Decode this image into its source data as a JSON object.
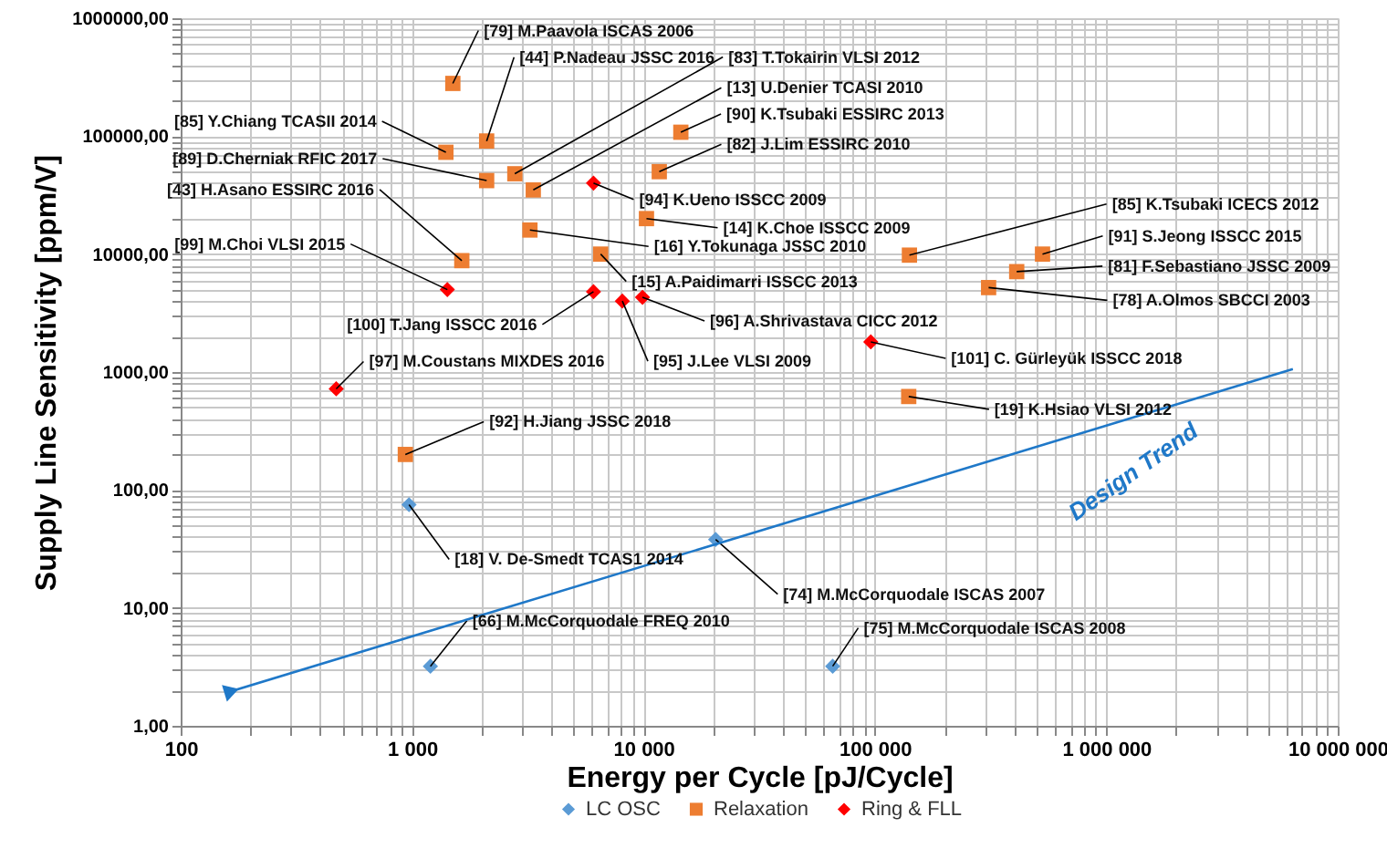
{
  "chart_data": {
    "type": "scatter",
    "xlabel": "Energy per Cycle [pJ/Cycle]",
    "ylabel": "Supply Line Sensitivity [ppm/V]",
    "log": "xy",
    "grid": true,
    "legend": "bottom",
    "xlim": [
      100,
      10000000
    ],
    "ylim": [
      1,
      1000000
    ],
    "xticks": [
      {
        "value": 100,
        "label": "100"
      },
      {
        "value": 1000,
        "label": "1 000"
      },
      {
        "value": 10000,
        "label": "10 000"
      },
      {
        "value": 100000,
        "label": "100 000"
      },
      {
        "value": 1000000,
        "label": "1 000 000"
      },
      {
        "value": 10000000,
        "label": "10 000 000"
      }
    ],
    "yticks": [
      {
        "value": 1,
        "label": "1,00"
      },
      {
        "value": 10,
        "label": "10,00"
      },
      {
        "value": 100,
        "label": "100,00"
      },
      {
        "value": 1000,
        "label": "1000,00"
      },
      {
        "value": 10000,
        "label": "10000,00"
      },
      {
        "value": 100000,
        "label": "100000,00"
      },
      {
        "value": 1000000,
        "label": "1000000,00"
      }
    ],
    "series": [
      {
        "name": "LC OSC",
        "color": "#5b9bd5",
        "marker": "diamond",
        "x": [
          970,
          20500,
          1200,
          65700
        ],
        "values": [
          75,
          38,
          3.2,
          3.2
        ]
      },
      {
        "name": "Relaxation",
        "color": "#ed7d31",
        "marker": "square",
        "x": [
          1500,
          2100,
          2780,
          3340,
          14500,
          11700,
          1400,
          2100,
          1640,
          10300,
          3230,
          6530,
          141000,
          530000,
          410000,
          310000,
          140000,
          935
        ],
        "values": [
          280000,
          91000,
          48000,
          35000,
          108000,
          50000,
          73000,
          42000,
          8800,
          20000,
          16000,
          10000,
          9800,
          10000,
          7100,
          5200,
          620,
          200
        ]
      },
      {
        "name": "Ring & FLL",
        "color": "#ff0000",
        "marker": "diamond",
        "x": [
          6080,
          1420,
          6080,
          8100,
          9900,
          470,
          96000
        ],
        "values": [
          40000,
          5000,
          4800,
          4000,
          4300,
          720,
          1800
        ]
      },
      {
        "name": "Design Trend",
        "type": "line",
        "color": "#1f78c8",
        "line_style": "solid",
        "x": [
          166,
          6400000
        ],
        "values": [
          1.97,
          1060
        ]
      }
    ],
    "annotations": [
      {
        "text": "[79] M.Paavola ISCAS 2006",
        "x": 1500,
        "y": 280000
      },
      {
        "text": "[44]  P.Nadeau JSSC 2016",
        "x": 2100,
        "y": 91000
      },
      {
        "text": "[83]  T.Tokairin VLSI 2012",
        "x": 2780,
        "y": 48000
      },
      {
        "text": "[13]  U.Denier TCASI 2010",
        "x": 3340,
        "y": 35000
      },
      {
        "text": "[90]  K.Tsubaki ESSIRC 2013",
        "x": 14500,
        "y": 108000
      },
      {
        "text": "[82]  J.Lim ESSIRC 2010",
        "x": 11700,
        "y": 50000
      },
      {
        "text": "[85]  Y.Chiang TCASII 2014",
        "x": 1400,
        "y": 73000
      },
      {
        "text": "[89]  D.Cherniak RFIC 2017",
        "x": 2100,
        "y": 42000
      },
      {
        "text": "[43]  H.Asano ESSIRC 2016",
        "x": 1640,
        "y": 8800
      },
      {
        "text": "[99] M.Choi VLSI 2015",
        "x": 1420,
        "y": 5000
      },
      {
        "text": "[94]  K.Ueno ISSCC 2009",
        "x": 6080,
        "y": 40000
      },
      {
        "text": "[14] K.Choe ISSCC 2009",
        "x": 10300,
        "y": 20000
      },
      {
        "text": "[16] Y.Tokunaga JSSC 2010",
        "x": 3230,
        "y": 16000
      },
      {
        "text": "[15]  A.Paidimarri ISSCC 2013",
        "x": 6530,
        "y": 10000
      },
      {
        "text": "[100] T.Jang ISSCC 2016",
        "x": 6080,
        "y": 4800
      },
      {
        "text": "[96] A.Shrivastava CICC 2012",
        "x": 9900,
        "y": 4300
      },
      {
        "text": "[95]  J.Lee VLSI 2009",
        "x": 8100,
        "y": 4000
      },
      {
        "text": "[97] M.Coustans MIXDES 2016",
        "x": 470,
        "y": 720
      },
      {
        "text": "[92] H.Jiang JSSC 2018",
        "x": 935,
        "y": 200
      },
      {
        "text": "[18]  V. De-Smedt TCAS1 2014",
        "x": 970,
        "y": 75
      },
      {
        "text": "[66] M.McCorquodale FREQ 2010",
        "x": 1200,
        "y": 3.2
      },
      {
        "text": "[74] M.McCorquodale ISCAS 2007",
        "x": 20500,
        "y": 38
      },
      {
        "text": "[75] M.McCorquodale ISCAS 2008",
        "x": 65700,
        "y": 3.2
      },
      {
        "text": "[19]  K.Hsiao VLSI 2012",
        "x": 140000,
        "y": 620
      },
      {
        "text": "[101] C. Gürleyük ISSCC 2018",
        "x": 96000,
        "y": 1800
      },
      {
        "text": "[85]  K.Tsubaki ICECS 2012",
        "x": 141000,
        "y": 9800
      },
      {
        "text": "[91]  S.Jeong ISSCC 2015",
        "x": 530000,
        "y": 10000
      },
      {
        "text": "[81]  F.Sebastiano JSSC 2009",
        "x": 410000,
        "y": 7100
      },
      {
        "text": "[78] A.Olmos SBCCI 2003",
        "x": 310000,
        "y": 5200
      }
    ]
  }
}
